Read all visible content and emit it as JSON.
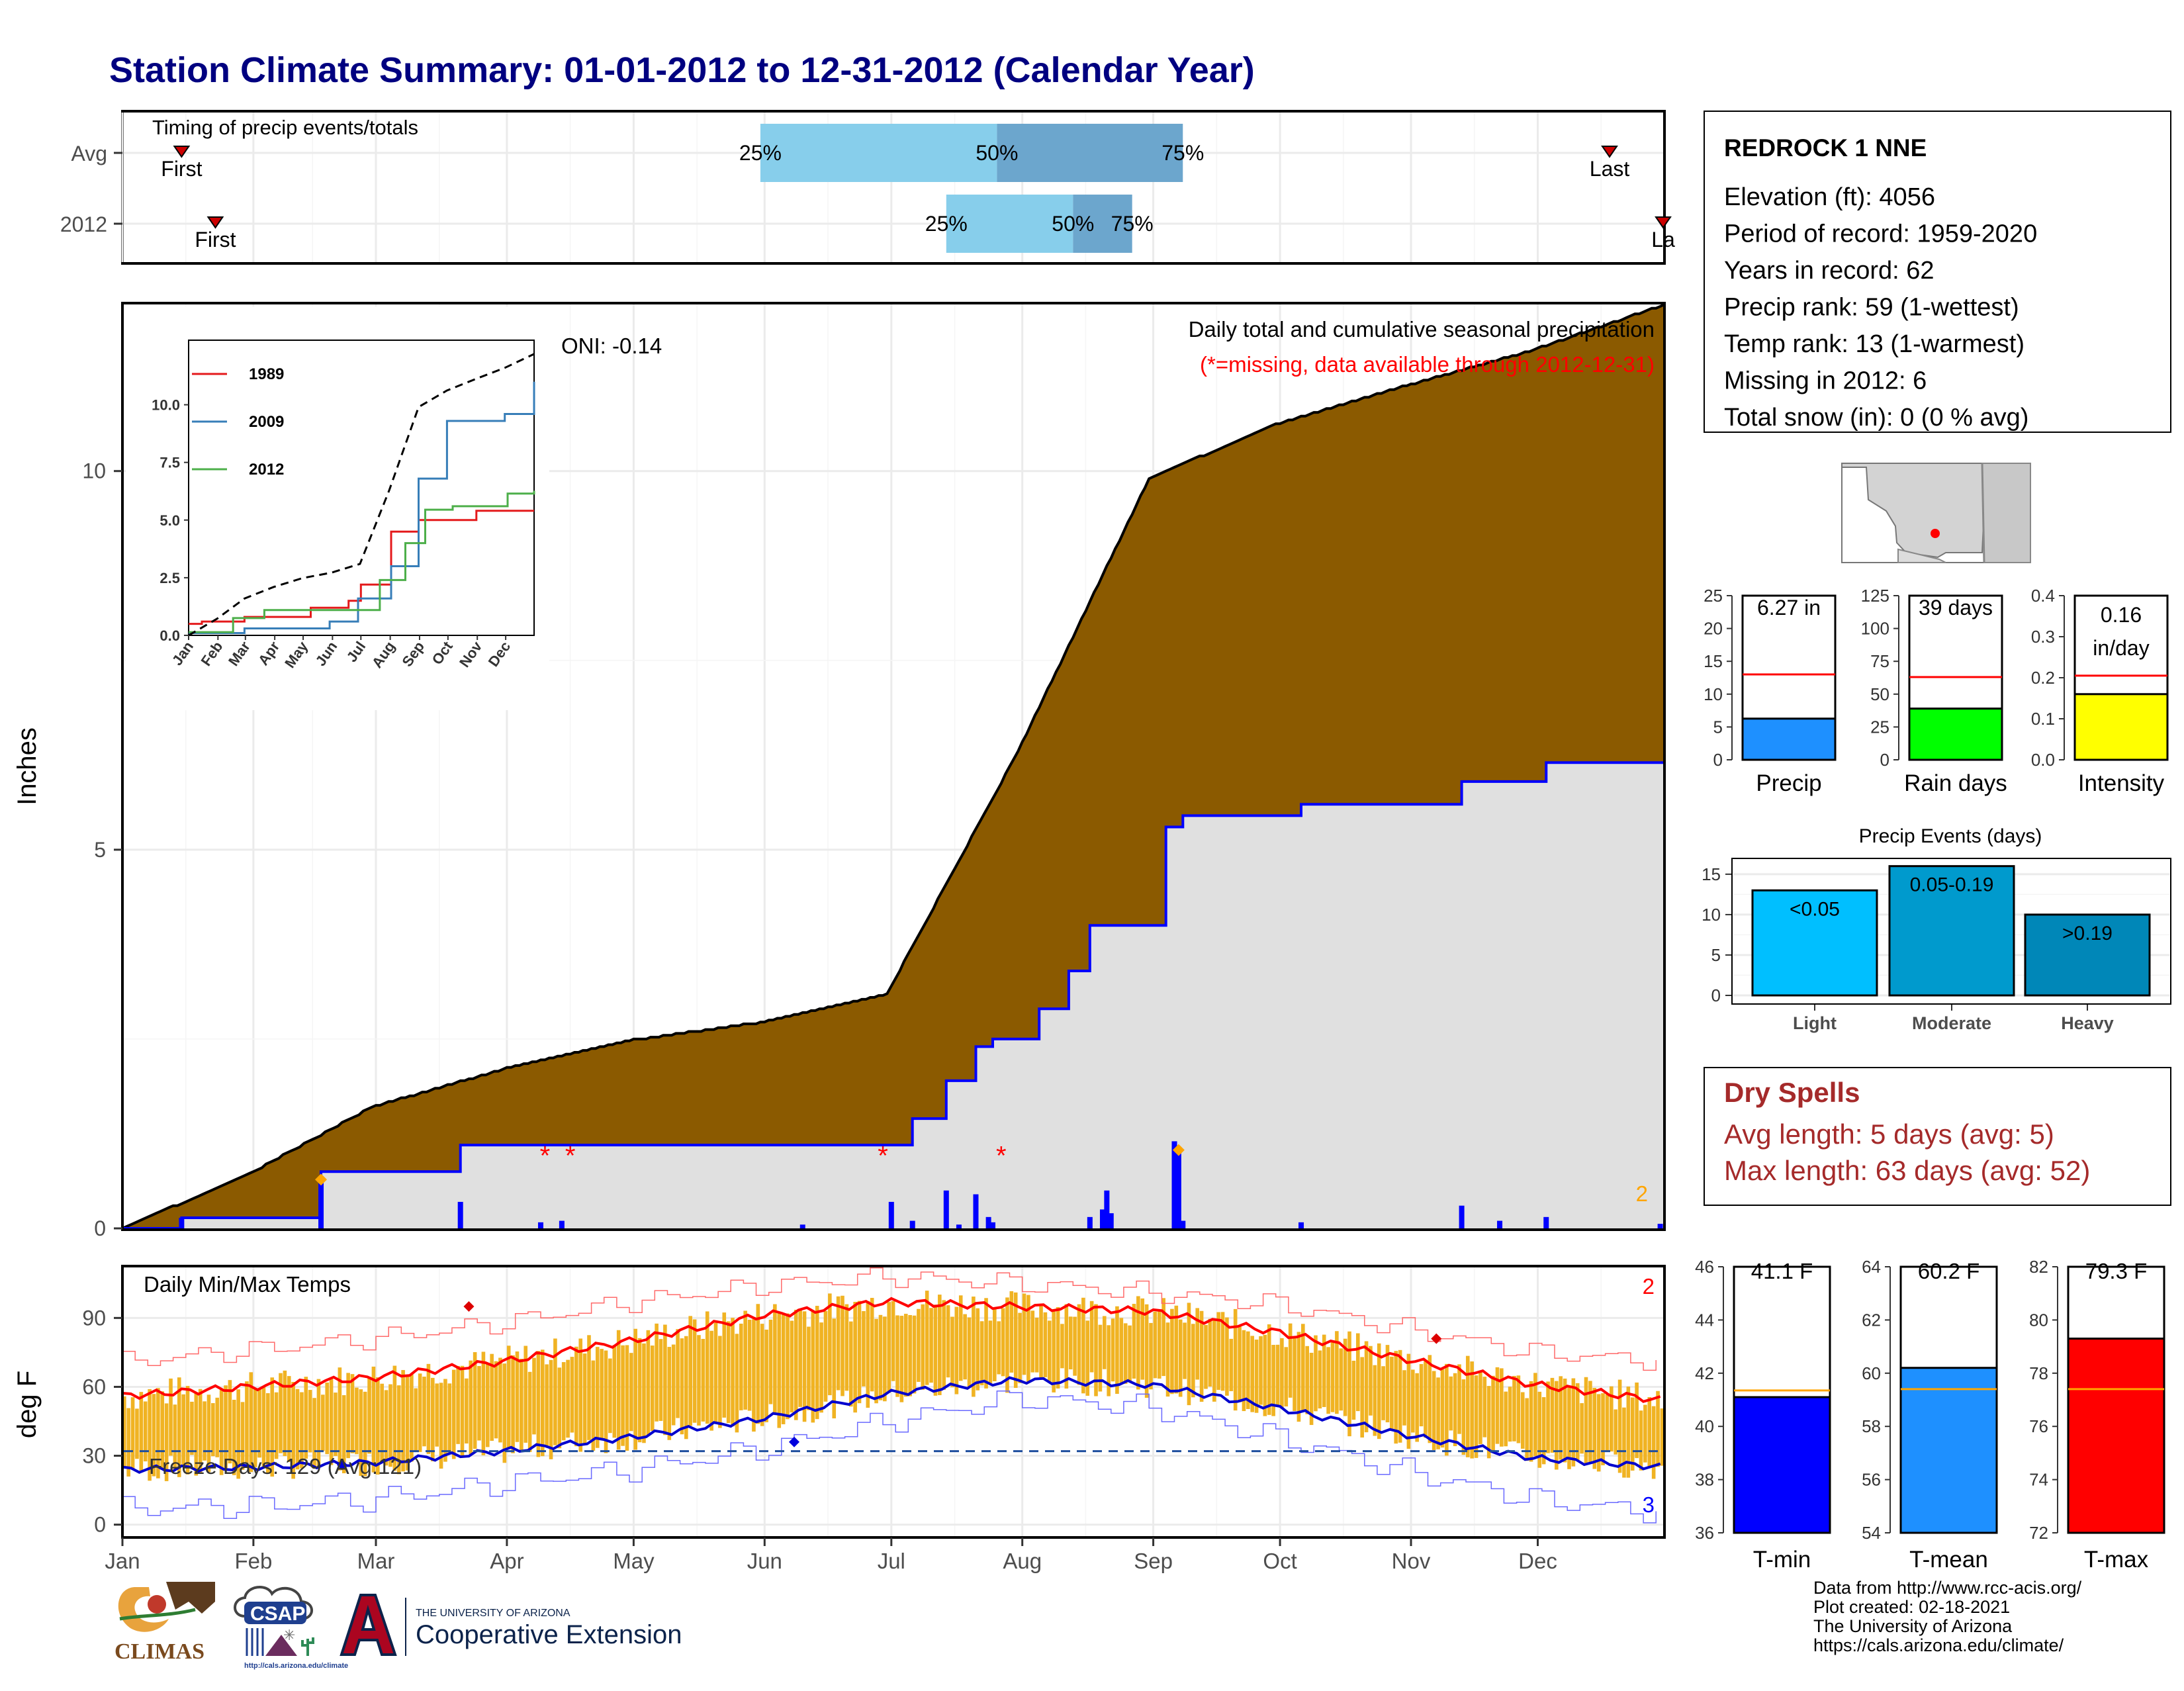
{
  "title": "Station Climate Summary: 01-01-2012 to 12-31-2012 (Calendar Year)",
  "timing_panel": {
    "label": "Timing of precip events/totals",
    "rows": [
      {
        "label": "Avg",
        "first_label": "First",
        "last_label": "Last",
        "p25": "25%",
        "p50": "50%",
        "p75": "75%"
      },
      {
        "label": "2012",
        "first_label": "First",
        "last_label": "La",
        "p25": "25%",
        "p50": "50%",
        "p75": "75%"
      }
    ]
  },
  "precip_panel": {
    "ylabel": "Inches",
    "header": "Daily total and cumulative seasonal precipitation",
    "missing_note": "(*=missing, data available through 2012-12-31)",
    "oni": "ONI: -0.14",
    "corner_count": "2",
    "yticks": [
      "0",
      "5",
      "10"
    ]
  },
  "temp_panel": {
    "ylabel": "deg F",
    "label": "Daily Min/Max Temps",
    "freeze_days": "Freeze Days: 129 (Avg:121)",
    "max_count": "2",
    "min_count": "3",
    "yticks": [
      "0",
      "30",
      "60",
      "90"
    ]
  },
  "months": [
    "Jan",
    "Feb",
    "Mar",
    "Apr",
    "May",
    "Jun",
    "Jul",
    "Aug",
    "Sep",
    "Oct",
    "Nov",
    "Dec"
  ],
  "inset": {
    "legend": [
      "1989",
      "2009",
      "2012"
    ],
    "yticks": [
      "0.0",
      "2.5",
      "5.0",
      "7.5",
      "10.0"
    ],
    "months": [
      "Jan",
      "Feb",
      "Mar",
      "Apr",
      "May",
      "Jun",
      "Jul",
      "Aug",
      "Sep",
      "Oct",
      "Nov",
      "Dec"
    ]
  },
  "station": {
    "name": "REDROCK 1 NNE",
    "lines": [
      "Elevation (ft): 4056",
      "Period of record: 1959-2020",
      "Years in record: 62",
      "Precip rank: 59 (1-wettest)",
      "Temp rank: 13 (1-warmest)",
      "Missing in 2012: 6",
      "Total snow (in): 0 (0 % avg)"
    ]
  },
  "mini_bars": [
    {
      "label": "Precip",
      "value_text": "6.27 in",
      "yticks": [
        "0",
        "5",
        "10",
        "15",
        "20",
        "25"
      ]
    },
    {
      "label": "Rain days",
      "value_text": "39 days",
      "yticks": [
        "0",
        "25",
        "50",
        "75",
        "100",
        "125"
      ]
    },
    {
      "label": "Intensity",
      "value_text": "0.16\nin/day",
      "value_line1": "0.16",
      "value_line2": "in/day",
      "yticks": [
        "0.0",
        "0.1",
        "0.2",
        "0.3",
        "0.4"
      ]
    }
  ],
  "precip_events": {
    "title": "Precip Events (days)",
    "yticks": [
      "0",
      "5",
      "10",
      "15"
    ],
    "bars": [
      {
        "category": "Light",
        "label": "<0.05"
      },
      {
        "category": "Moderate",
        "label": "0.05-0.19"
      },
      {
        "category": "Heavy",
        "label": ">0.19"
      }
    ]
  },
  "dry_spells": {
    "title": "Dry Spells",
    "avg_line": "Avg length: 5 days (avg: 5)",
    "max_line": "Max length: 63 days (avg: 52)"
  },
  "temp_bars": [
    {
      "label": "T-min",
      "value_text": "41.1 F",
      "yticks": [
        "36",
        "38",
        "40",
        "42",
        "44",
        "46"
      ]
    },
    {
      "label": "T-mean",
      "value_text": "60.2 F",
      "yticks": [
        "54",
        "56",
        "58",
        "60",
        "62",
        "64"
      ]
    },
    {
      "label": "T-max",
      "value_text": "79.3 F",
      "yticks": [
        "72",
        "74",
        "76",
        "78",
        "80",
        "82"
      ]
    }
  ],
  "credits": [
    "Data from http://www.rcc-acis.org/",
    "Plot created: 02-18-2021",
    "The University of Arizona",
    "https://cals.arizona.edu/climate/"
  ],
  "logos": {
    "climas": "CLIMAS",
    "csap": "CSAP",
    "csap_url": "http://cals.arizona.edu/climate",
    "ua_line1": "THE UNIVERSITY OF ARIZONA",
    "ua_line2": "Cooperative Extension"
  },
  "colors": {
    "title": "#000080",
    "cumulative_avg": "#8B5A00",
    "cumulative_2012_fill": "#E0E0E0",
    "cumulative_2012_line": "#0000FF",
    "daily_bar": "#0000FF",
    "temp_bar": "#F0B323",
    "tmax_line": "#FF0000",
    "tmin_line": "#0000CD",
    "light_blue": "#87CEEB",
    "mid_blue": "#6CA6CD",
    "dry_spells": "#A52A2A"
  },
  "chart_data": [
    {
      "type": "area",
      "title": "Daily total and cumulative seasonal precipitation",
      "ylabel": "Inches",
      "ylim": [
        0,
        12.2
      ],
      "x_unit": "day of year 2012",
      "series": [
        {
          "name": "Avg cumulative",
          "x": [
            1,
            31,
            60,
            91,
            121,
            152,
            182,
            213,
            244,
            274,
            305,
            335,
            366
          ],
          "values": [
            0,
            0.72,
            1.6,
            2.1,
            2.48,
            2.72,
            3.1,
            6.3,
            9.9,
            10.62,
            11.13,
            11.6,
            12.2
          ]
        },
        {
          "name": "2012 cumulative",
          "x": [
            1,
            15,
            47,
            48,
            80,
            81,
            183,
            188,
            196,
            203,
            207,
            218,
            225,
            230,
            234,
            248,
            252,
            280,
            318,
            338,
            366
          ],
          "values": [
            0,
            0.14,
            0.14,
            0.75,
            0.75,
            1.1,
            1.1,
            1.45,
            1.95,
            2.4,
            2.5,
            2.9,
            3.4,
            4.0,
            4.0,
            5.3,
            5.45,
            5.6,
            5.9,
            6.15,
            6.27
          ]
        },
        {
          "name": "2012 daily",
          "x": [
            15,
            48,
            81,
            100,
            105,
            162,
            183,
            188,
            196,
            199,
            203,
            206,
            207,
            230,
            233,
            234,
            235,
            250,
            251,
            252,
            280,
            318,
            327,
            338,
            365
          ],
          "values": [
            0.14,
            0.61,
            0.35,
            0.08,
            0.1,
            0.05,
            0.35,
            0.1,
            0.5,
            0.05,
            0.45,
            0.15,
            0.08,
            0.15,
            0.25,
            0.5,
            0.2,
            1.15,
            1.0,
            0.1,
            0.08,
            0.3,
            0.1,
            0.15,
            0.06
          ]
        }
      ],
      "missing_days": [
        101,
        107,
        181,
        209
      ]
    },
    {
      "type": "line",
      "title": "Daily Min/Max Temps",
      "ylabel": "deg F",
      "ylim": [
        -5,
        112
      ],
      "x_unit": "day of year 2012",
      "x": [
        1,
        31,
        60,
        91,
        121,
        152,
        182,
        213,
        244,
        274,
        305,
        335,
        366
      ],
      "series": [
        {
          "name": "Tmax normal",
          "values": [
            56,
            60,
            64,
            71,
            80,
            91,
            97,
            95,
            93,
            84,
            72,
            61,
            54
          ]
        },
        {
          "name": "Tmin normal",
          "values": [
            24,
            25,
            27,
            32,
            38,
            46,
            57,
            63,
            61,
            51,
            39,
            29,
            25
          ]
        },
        {
          "name": "Tmax record",
          "values": [
            71,
            76,
            81,
            88,
            97,
            104,
            108,
            105,
            101,
            96,
            85,
            75,
            71
          ]
        },
        {
          "name": "Tmin record",
          "values": [
            7,
            8,
            11,
            18,
            24,
            33,
            45,
            55,
            51,
            38,
            23,
            11,
            5
          ]
        }
      ]
    },
    {
      "type": "bar",
      "title": "Timing of precip events/totals",
      "categories": [
        "Avg",
        "2012"
      ],
      "series": [
        {
          "name": "25%",
          "values": [
            152,
            196
          ]
        },
        {
          "name": "50%",
          "values": [
            208,
            226
          ]
        },
        {
          "name": "75%",
          "values": [
            252,
            240
          ]
        }
      ]
    },
    {
      "type": "line",
      "x_unit": "day of year",
      "ylim": [
        0,
        12.8
      ],
      "series": [
        {
          "name": "1989",
          "x": [
            1,
            15,
            60,
            130,
            170,
            183,
            215,
            244,
            305,
            366
          ],
          "values": [
            0.5,
            0.6,
            0.8,
            1.2,
            1.5,
            2.2,
            4.5,
            5.0,
            5.4,
            5.4
          ]
        },
        {
          "name": "2009",
          "x": [
            1,
            60,
            150,
            180,
            215,
            244,
            274,
            335,
            366
          ],
          "values": [
            0.1,
            0.3,
            0.6,
            1.6,
            3.0,
            6.8,
            9.3,
            9.6,
            11.0
          ]
        },
        {
          "name": "2012",
          "x": [
            1,
            48,
            81,
            183,
            203,
            230,
            251,
            280,
            338,
            366
          ],
          "values": [
            0.14,
            0.75,
            1.1,
            1.1,
            2.4,
            4.0,
            5.45,
            5.6,
            6.15,
            6.27
          ]
        },
        {
          "name": "Avg",
          "x": [
            1,
            31,
            60,
            91,
            121,
            152,
            182,
            213,
            244,
            274,
            305,
            335,
            366
          ],
          "values": [
            0,
            0.72,
            1.6,
            2.1,
            2.48,
            2.72,
            3.1,
            6.3,
            9.9,
            10.62,
            11.13,
            11.6,
            12.2
          ]
        }
      ]
    },
    {
      "type": "bar",
      "categories": [
        "Precip"
      ],
      "values": [
        6.27
      ],
      "reference": [
        13
      ],
      "ylim": [
        0,
        25
      ]
    },
    {
      "type": "bar",
      "categories": [
        "Rain days"
      ],
      "values": [
        39
      ],
      "reference": [
        63
      ],
      "ylim": [
        0,
        125
      ]
    },
    {
      "type": "bar",
      "categories": [
        "Intensity"
      ],
      "values": [
        0.16
      ],
      "reference": [
        0.205
      ],
      "ylim": [
        0,
        0.4
      ]
    },
    {
      "type": "bar",
      "title": "Precip Events (days)",
      "categories": [
        "Light",
        "Moderate",
        "Heavy"
      ],
      "values": [
        13,
        16,
        10
      ],
      "ylim": [
        0,
        16
      ]
    },
    {
      "type": "bar",
      "categories": [
        "T-min"
      ],
      "values": [
        41.1
      ],
      "reference": [
        41.35
      ],
      "ylim": [
        36,
        46
      ]
    },
    {
      "type": "bar",
      "categories": [
        "T-mean"
      ],
      "values": [
        60.2
      ],
      "reference": [
        59.4
      ],
      "ylim": [
        54,
        64
      ]
    },
    {
      "type": "bar",
      "categories": [
        "T-max"
      ],
      "values": [
        79.3
      ],
      "reference": [
        77.4
      ],
      "ylim": [
        72,
        82
      ]
    }
  ]
}
